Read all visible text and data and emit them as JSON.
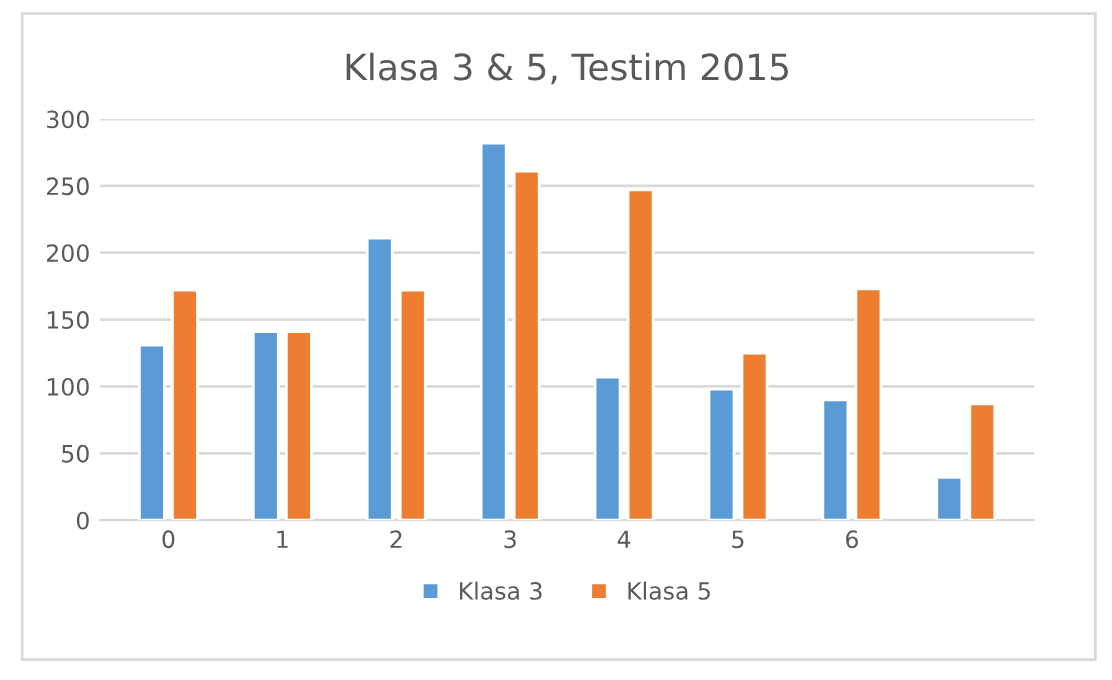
{
  "chart_data": {
    "type": "bar",
    "title": "Klasa 3 & 5, Testim 2015",
    "categories": [
      "0",
      "1",
      "2",
      "3",
      "4",
      "5",
      "6",
      null
    ],
    "series": [
      {
        "name": "Klasa 3",
        "color": "#5b9bd5",
        "values": [
          131,
          141,
          211,
          282,
          107,
          98,
          90,
          32
        ]
      },
      {
        "name": "Klasa 5",
        "color": "#ed7d31",
        "values": [
          172,
          141,
          172,
          261,
          247,
          125,
          173,
          87
        ]
      }
    ],
    "ylim": [
      0,
      300
    ],
    "yticks": [
      0,
      50,
      100,
      150,
      200,
      250,
      300
    ],
    "grid": "y",
    "legend": "bottom"
  }
}
